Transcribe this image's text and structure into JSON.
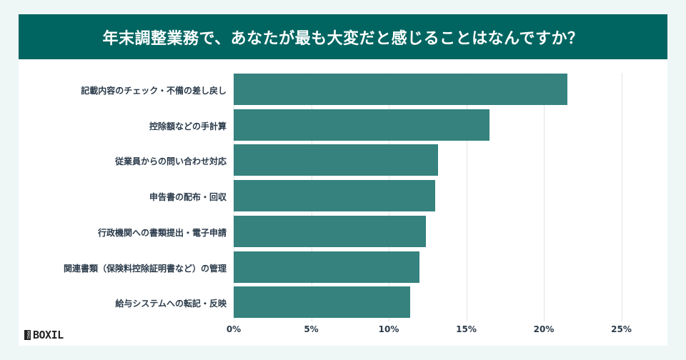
{
  "title": "年末調整業務で、あなたが最も大変だと感じることはなんですか？",
  "logo": {
    "badge": "MAG",
    "text": "BOXIL"
  },
  "colors": {
    "header": "#006561",
    "bar": "#35827e",
    "background": "#eef6f6"
  },
  "chart_data": {
    "type": "bar",
    "orientation": "horizontal",
    "title": "年末調整業務で、あなたが最も大変だと感じることはなんですか？",
    "categories": [
      "記載内容のチェック・不備の差し戻し",
      "控除額などの手計算",
      "従業員からの問い合わせ対応",
      "申告書の配布・回収",
      "行政機関への書類提出・電子申請",
      "関連書類（保険料控除証明書など）の管理",
      "給与システムへの転記・反映"
    ],
    "values": [
      21.5,
      16.5,
      13.2,
      13.0,
      12.4,
      12.0,
      11.4
    ],
    "xlabel": "",
    "ylabel": "",
    "xlim": [
      0,
      25
    ],
    "xticks": [
      "0%",
      "5%",
      "10%",
      "15%",
      "20%",
      "25%"
    ],
    "grid": true,
    "legend": null
  }
}
